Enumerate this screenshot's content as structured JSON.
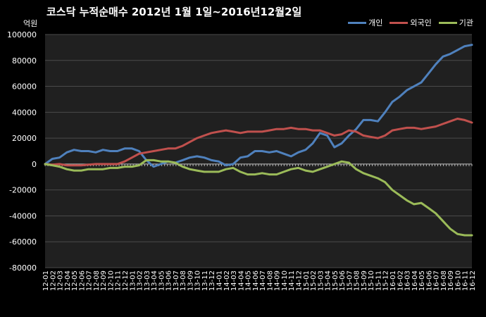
{
  "chart_data": {
    "type": "line",
    "title": "코스닥  누적순매수 2012년 1월 1일~2016년12월2일",
    "unit_label": "억원",
    "ylim": [
      -80000,
      100000
    ],
    "yticks": [
      100000,
      80000,
      60000,
      40000,
      20000,
      0,
      -20000,
      -40000,
      -60000,
      -80000
    ],
    "grid": true,
    "legend_position": "top-right",
    "x": [
      "12-01",
      "12-02",
      "12-03",
      "12-04",
      "12-05",
      "12-06",
      "12-07",
      "12-08",
      "12-09",
      "12-10",
      "12-11",
      "12-12",
      "13-01",
      "13-02",
      "13-03",
      "13-04",
      "13-05",
      "13-06",
      "13-07",
      "13-08",
      "13-09",
      "13-10",
      "13-11",
      "13-12",
      "14-01",
      "14-02",
      "14-03",
      "14-04",
      "14-05",
      "14-06",
      "14-07",
      "14-08",
      "14-09",
      "14-10",
      "14-11",
      "14-12",
      "15-01",
      "15-02",
      "15-03",
      "15-04",
      "15-05",
      "15-06",
      "15-07",
      "15-08",
      "15-09",
      "15-10",
      "15-11",
      "15-12",
      "16-01",
      "16-02",
      "16-03",
      "16-04",
      "16-05",
      "16-06",
      "16-07",
      "16-08",
      "16-09",
      "16-10",
      "16-11",
      "16-12"
    ],
    "x_tick_labels": [
      "12-01",
      "12-02",
      "12-03",
      "12-04",
      "12-05",
      "12-06",
      "12-07",
      "12-08",
      "12-09",
      "12-10",
      "12-11",
      "12-12",
      "13-01",
      "13-02",
      "13-03",
      "13-04",
      "13-05",
      "13-06",
      "13-07",
      "13-08",
      "13-09",
      "13-10",
      "13-11",
      "13-12",
      "14-01",
      "14-02",
      "14-03",
      "14-04",
      "14-05",
      "14-06",
      "14-07",
      "14-08",
      "14-09",
      "14-10",
      "14-11",
      "14-12",
      "15-01",
      "15-02",
      "15-03",
      "15-04",
      "15-05",
      "15-06",
      "15-07",
      "15-08",
      "15-09",
      "15-10",
      "15-11",
      "15-12",
      "16-01",
      "16-02",
      "16-03",
      "16-04",
      "16-05",
      "16-06",
      "16-07",
      "16-08",
      "16-09",
      "16-10",
      "16-11",
      "16-12"
    ],
    "series": [
      {
        "name": "개인",
        "color": "#4f81bd",
        "values": [
          0,
          4000,
          5000,
          9000,
          11000,
          10000,
          10000,
          9000,
          11000,
          10000,
          10000,
          12000,
          12000,
          10000,
          3000,
          -2000,
          0,
          2000,
          1000,
          3000,
          5000,
          6000,
          5000,
          3000,
          2000,
          -1000,
          0,
          5000,
          6000,
          10000,
          10000,
          9000,
          10000,
          8000,
          6000,
          9000,
          11000,
          16000,
          24000,
          22000,
          13000,
          16000,
          22000,
          27000,
          34000,
          34000,
          33000,
          40000,
          48000,
          52000,
          57000,
          60000,
          63000,
          70000,
          77000,
          83000,
          85000,
          88000,
          91000,
          92000
        ]
      },
      {
        "name": "외국인",
        "color": "#c0504d",
        "values": [
          0,
          -500,
          0,
          -1000,
          -1000,
          -1000,
          -500,
          0,
          0,
          0,
          0,
          2000,
          5000,
          8000,
          9000,
          10000,
          11000,
          12000,
          12000,
          14000,
          17000,
          20000,
          22000,
          24000,
          25000,
          26000,
          25000,
          24000,
          25000,
          25000,
          25000,
          26000,
          27000,
          27000,
          28000,
          27000,
          27000,
          26000,
          26000,
          24000,
          22000,
          23000,
          26000,
          25000,
          22000,
          21000,
          20000,
          22000,
          26000,
          27000,
          28000,
          28000,
          27000,
          28000,
          29000,
          31000,
          33000,
          35000,
          34000,
          32000
        ]
      },
      {
        "name": "기관",
        "color": "#9bbb59",
        "values": [
          0,
          -1000,
          -2000,
          -4000,
          -5000,
          -5000,
          -4000,
          -4000,
          -4000,
          -3000,
          -3000,
          -2000,
          -2000,
          -1000,
          3000,
          3000,
          2000,
          2000,
          1000,
          -2000,
          -4000,
          -5000,
          -6000,
          -6000,
          -6000,
          -4000,
          -3000,
          -6000,
          -8000,
          -8000,
          -7000,
          -8000,
          -8000,
          -6000,
          -4000,
          -3000,
          -5000,
          -6000,
          -4000,
          -2000,
          0,
          2000,
          1000,
          -4000,
          -7000,
          -9000,
          -11000,
          -14000,
          -20000,
          -24000,
          -28000,
          -31000,
          -30000,
          -34000,
          -38000,
          -44000,
          -50000,
          -54000,
          -55000,
          -55000
        ]
      }
    ]
  }
}
